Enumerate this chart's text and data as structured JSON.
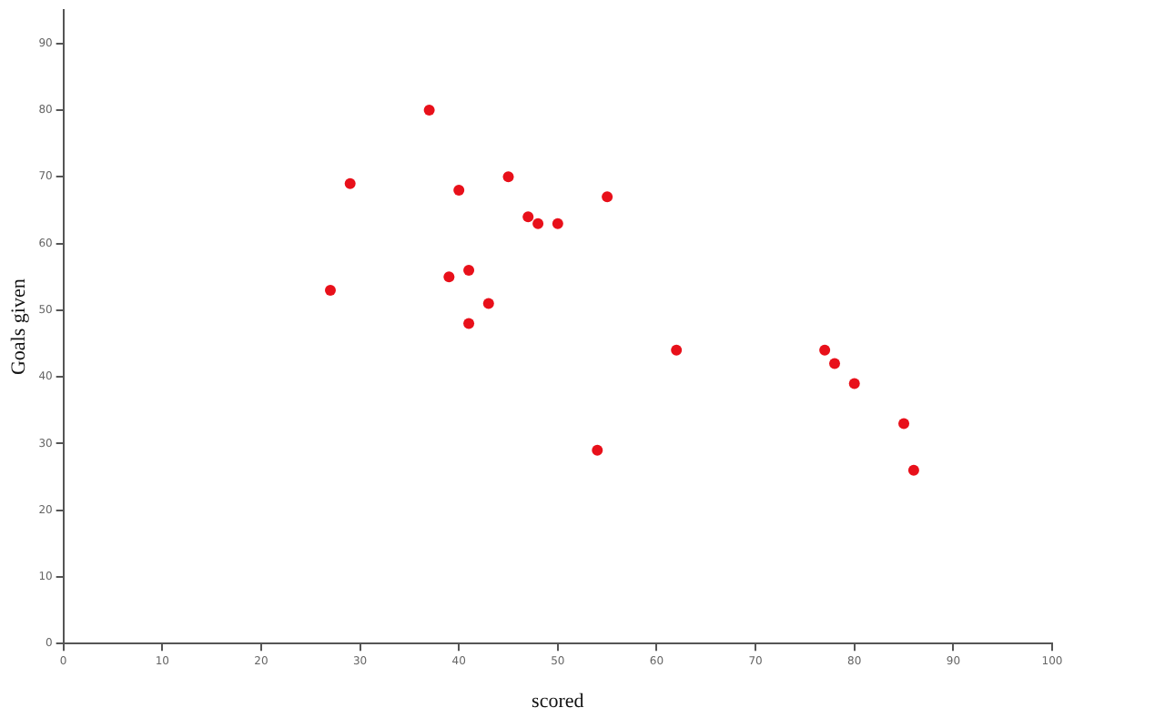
{
  "chart_data": {
    "type": "scatter",
    "xlabel": "scored",
    "ylabel": "Goals given",
    "x": [
      27,
      29,
      37,
      40,
      39,
      41,
      41,
      43,
      45,
      47,
      48,
      50,
      55,
      54,
      62,
      77,
      78,
      80,
      85,
      86
    ],
    "series": [
      {
        "color": "#e8101a",
        "values": [
          53,
          69,
          80,
          68,
          55,
          56,
          48,
          51,
          70,
          64,
          63,
          63,
          67,
          29,
          44,
          44,
          42,
          39,
          33,
          26
        ]
      }
    ],
    "xlim": [
      0,
      100
    ],
    "xticks": [
      0,
      10,
      20,
      30,
      40,
      50,
      60,
      70,
      80,
      90,
      100
    ],
    "ylim": [
      0,
      95
    ],
    "yticks": [
      0,
      10,
      20,
      30,
      40,
      50,
      60,
      70,
      80,
      90
    ],
    "grid": false,
    "legend": false,
    "marker": "circle"
  }
}
